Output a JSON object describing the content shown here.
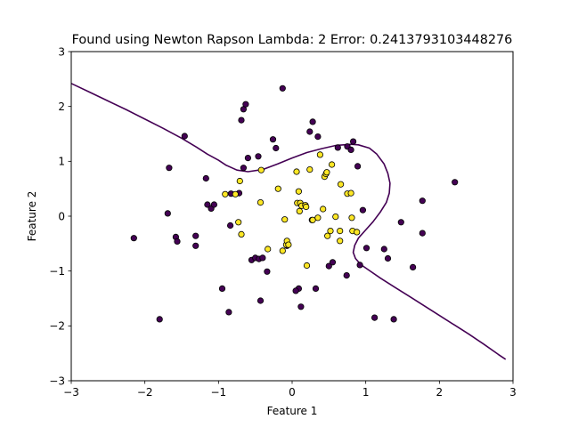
{
  "chart_data": {
    "type": "scatter",
    "title": "Found using Newton Rapson  Lambda: 2 Error: 0.2413793103448276",
    "xlabel": "Feature 1",
    "ylabel": "Feature 2",
    "xlim": [
      -3,
      3
    ],
    "ylim": [
      -3,
      3
    ],
    "xticks": [
      -3,
      -2,
      -1,
      0,
      1,
      2,
      3
    ],
    "yticks": [
      -3,
      -2,
      -1,
      0,
      1,
      2,
      3
    ],
    "xtick_labels": [
      "−3",
      "−2",
      "−1",
      "0",
      "1",
      "2",
      "3"
    ],
    "ytick_labels": [
      "−3",
      "−2",
      "−1",
      "0",
      "1",
      "2",
      "3"
    ],
    "grid": false,
    "legend": "none",
    "colors": {
      "class0": "#440154",
      "class1": "#fde725",
      "edge": "#000000",
      "boundary": "#440154"
    },
    "series": [
      {
        "class": 0,
        "x": [
          -2.15,
          -1.8,
          -1.67,
          -1.69,
          -1.58,
          -1.56,
          -1.46,
          -1.31,
          -1.31,
          -1.17,
          -1.15,
          -1.1,
          -1.06,
          -0.95,
          -0.86,
          -0.83,
          -0.84,
          -0.72,
          -0.66,
          -0.69,
          -0.63,
          -0.66,
          -0.6,
          -0.55,
          -0.5,
          -0.46,
          -0.45,
          -0.43,
          -0.4,
          -0.34,
          -0.26,
          -0.22,
          -0.13,
          0.09,
          0.12,
          0.05,
          -0.07,
          0.24,
          0.28,
          0.27,
          0.32,
          0.35,
          0.5,
          0.55,
          0.62,
          0.75,
          0.8,
          0.83,
          0.89,
          0.92,
          0.96,
          1.01,
          1.12,
          1.25,
          1.3,
          1.38,
          1.48,
          1.64,
          1.77,
          1.77,
          2.21,
          0.74
        ],
        "y": [
          -0.4,
          -1.88,
          0.88,
          0.05,
          -0.38,
          -0.46,
          1.46,
          -0.36,
          -0.54,
          0.69,
          0.21,
          0.14,
          0.21,
          -1.32,
          -1.75,
          0.41,
          -0.17,
          0.42,
          1.95,
          1.75,
          2.04,
          0.88,
          1.06,
          -0.8,
          -0.76,
          1.09,
          -0.78,
          -1.54,
          -0.76,
          -1.01,
          1.4,
          1.24,
          2.33,
          -1.32,
          -1.65,
          -1.36,
          -0.54,
          1.54,
          1.72,
          -0.07,
          -1.32,
          1.45,
          -0.91,
          -0.84,
          1.25,
          1.27,
          1.21,
          1.36,
          0.91,
          -0.89,
          0.11,
          -0.58,
          -1.85,
          -0.6,
          -0.77,
          -1.88,
          -0.11,
          -0.93,
          0.28,
          -0.31,
          0.62,
          -1.08
        ]
      },
      {
        "class": 1,
        "x": [
          -0.91,
          -0.77,
          -0.73,
          -0.71,
          -0.69,
          -0.42,
          -0.43,
          -0.33,
          -0.19,
          -0.13,
          -0.1,
          -0.08,
          -0.07,
          -0.05,
          0.06,
          0.07,
          0.09,
          0.1,
          0.11,
          0.13,
          0.18,
          0.2,
          0.24,
          0.28,
          0.38,
          0.42,
          0.44,
          0.46,
          0.48,
          0.52,
          0.54,
          0.59,
          0.65,
          0.65,
          0.66,
          0.75,
          0.8,
          0.81,
          0.82,
          0.88,
          0.35,
          0.19,
          0.47
        ],
        "y": [
          0.4,
          0.4,
          -0.11,
          0.64,
          -0.33,
          0.84,
          0.25,
          -0.6,
          0.5,
          -0.63,
          -0.06,
          -0.52,
          -0.45,
          -0.52,
          0.81,
          0.24,
          0.45,
          0.09,
          0.24,
          0.19,
          0.2,
          -0.9,
          0.85,
          -0.07,
          1.12,
          0.13,
          0.72,
          0.77,
          -0.36,
          -0.27,
          0.94,
          -0.01,
          -0.27,
          -0.45,
          0.58,
          0.41,
          0.42,
          -0.03,
          -0.27,
          -0.29,
          -0.03,
          0.17,
          0.8
        ]
      }
    ],
    "boundary": {
      "type": "line",
      "x": [
        -3.0,
        -2.75,
        -2.5,
        -2.25,
        -2.0,
        -1.75,
        -1.5,
        -1.3,
        -1.15,
        -1.0,
        -0.9,
        -0.75,
        -0.6,
        -0.4,
        -0.2,
        0.0,
        0.2,
        0.4,
        0.6,
        0.8,
        0.9,
        1.05,
        1.15,
        1.25,
        1.3,
        1.33,
        1.32,
        1.28,
        1.2,
        1.1,
        1.0,
        0.9,
        0.85,
        0.83,
        0.86,
        0.93,
        1.05,
        1.2,
        1.4,
        1.6,
        1.8,
        2.0,
        2.2,
        2.4,
        2.6,
        2.8,
        2.9
      ],
      "y": [
        2.42,
        2.26,
        2.1,
        1.94,
        1.77,
        1.6,
        1.42,
        1.26,
        1.13,
        1.02,
        0.93,
        0.84,
        0.81,
        0.85,
        0.95,
        1.06,
        1.16,
        1.23,
        1.29,
        1.31,
        1.3,
        1.24,
        1.13,
        0.95,
        0.78,
        0.6,
        0.42,
        0.25,
        0.08,
        -0.1,
        -0.25,
        -0.4,
        -0.53,
        -0.66,
        -0.77,
        -0.88,
        -0.99,
        -1.13,
        -1.3,
        -1.47,
        -1.64,
        -1.81,
        -1.98,
        -2.15,
        -2.33,
        -2.52,
        -2.61
      ]
    }
  }
}
